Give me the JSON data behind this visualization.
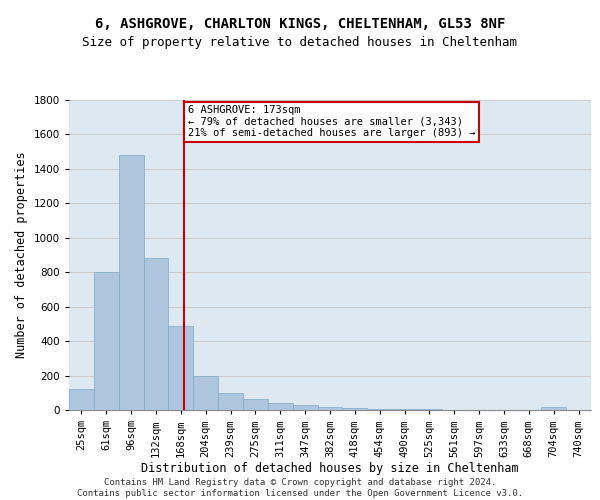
{
  "title1": "6, ASHGROVE, CHARLTON KINGS, CHELTENHAM, GL53 8NF",
  "title2": "Size of property relative to detached houses in Cheltenham",
  "xlabel": "Distribution of detached houses by size in Cheltenham",
  "ylabel": "Number of detached properties",
  "categories": [
    "25sqm",
    "61sqm",
    "96sqm",
    "132sqm",
    "168sqm",
    "204sqm",
    "239sqm",
    "275sqm",
    "311sqm",
    "347sqm",
    "382sqm",
    "418sqm",
    "454sqm",
    "490sqm",
    "525sqm",
    "561sqm",
    "597sqm",
    "633sqm",
    "668sqm",
    "704sqm",
    "740sqm"
  ],
  "values": [
    120,
    800,
    1480,
    880,
    490,
    200,
    100,
    65,
    40,
    30,
    20,
    10,
    8,
    8,
    8,
    0,
    0,
    0,
    0,
    15,
    0
  ],
  "bar_color": "#aec6de",
  "bar_edgecolor": "#7aaac8",
  "vline_color": "#cc0000",
  "annotation_text": "6 ASHGROVE: 173sqm\n← 79% of detached houses are smaller (3,343)\n21% of semi-detached houses are larger (893) →",
  "annotation_box_color": "#ffffff",
  "annotation_box_edgecolor": "#cc0000",
  "ylim": [
    0,
    1800
  ],
  "yticks": [
    0,
    200,
    400,
    600,
    800,
    1000,
    1200,
    1400,
    1600,
    1800
  ],
  "grid_color": "#cccccc",
  "bg_color": "#dde8f0",
  "footer_line1": "Contains HM Land Registry data © Crown copyright and database right 2024.",
  "footer_line2": "Contains public sector information licensed under the Open Government Licence v3.0.",
  "title1_fontsize": 10,
  "title2_fontsize": 9,
  "tick_fontsize": 7.5,
  "ylabel_fontsize": 8.5,
  "xlabel_fontsize": 8.5,
  "annotation_fontsize": 7.5,
  "footer_fontsize": 6.5
}
